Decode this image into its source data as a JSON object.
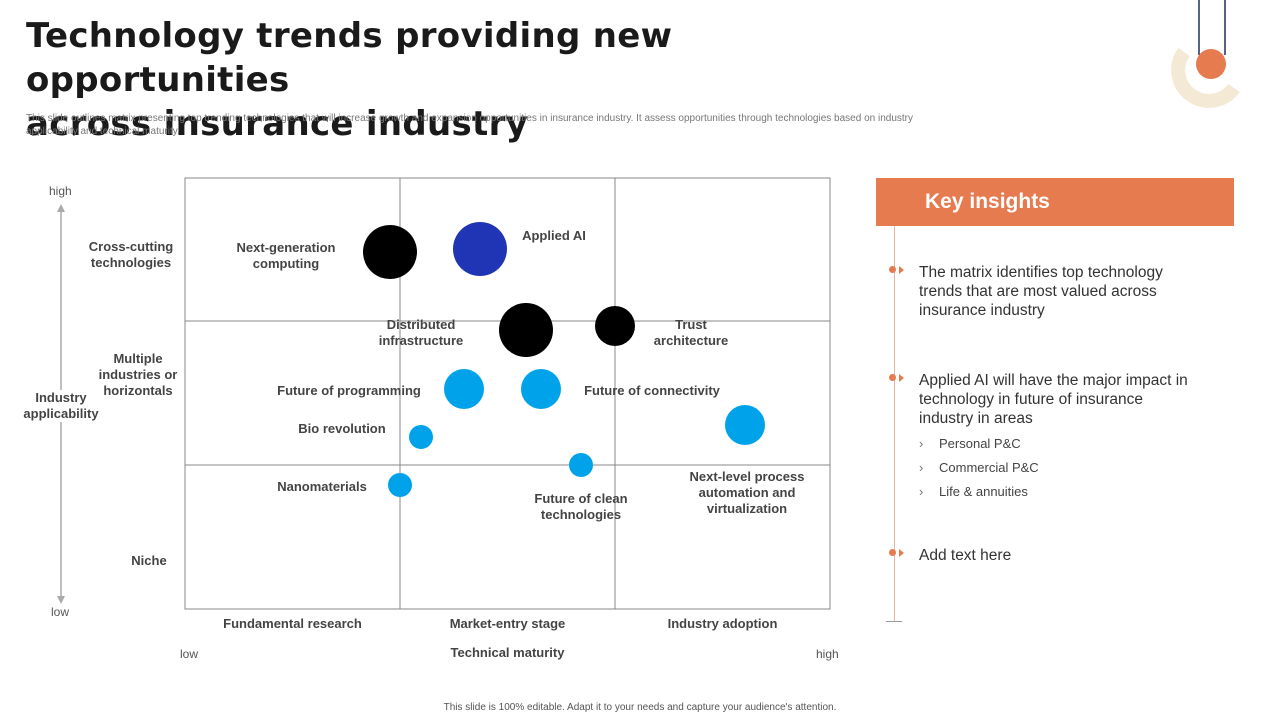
{
  "header": {
    "title_line1": "Technology trends providing new opportunities",
    "title_line2": "across insurance industry",
    "subtitle": "This slide outlines matrix presenting top trending technologies that will increase growth and expansion opportunities in insurance industry. It assess opportunities through technologies based on industry applicability and technical maturity."
  },
  "matrix": {
    "y_axis": {
      "label_line1": "Industry",
      "label_line2": "applicability",
      "high": "high",
      "low": "low"
    },
    "x_axis": {
      "label": "Technical maturity",
      "low": "low",
      "high": "high"
    },
    "rows": [
      {
        "line1": "Cross-cutting",
        "line2": "technologies",
        "line3": ""
      },
      {
        "line1": "Multiple",
        "line2": "industries or",
        "line3": "horizontals"
      },
      {
        "line1": "Niche",
        "line2": "",
        "line3": ""
      }
    ],
    "columns": [
      "Fundamental research",
      "Market-entry stage",
      "Industry  adoption"
    ],
    "labels": {
      "next_gen_1": "Next-generation",
      "next_gen_2": "computing",
      "applied_ai": "Applied AI",
      "distributed_1": "Distributed",
      "distributed_2": "infrastructure",
      "trust_1": "Trust",
      "trust_2": "architecture",
      "programming": "Future of programming",
      "connectivity": "Future of  connectivity",
      "bio": "Bio revolution",
      "nano": "Nanomaterials",
      "clean_1": "Future of clean",
      "clean_2": "technologies",
      "process_1": "Next-level process",
      "process_2": "automation and",
      "process_3": "virtualization"
    },
    "colors": {
      "black": "#000000",
      "dark_blue": "#1f35b5",
      "light_blue": "#00a2ea",
      "grid": "#888888"
    }
  },
  "insights": {
    "header": "Key insights",
    "items": [
      {
        "l1": "The matrix identifies top technology",
        "l2": "trends that are most valued across",
        "l3": "insurance industry"
      },
      {
        "l1": "Applied AI will have the major impact in",
        "l2": "technology in future  of insurance",
        "l3": "industry in areas"
      },
      {
        "l1": "Add text here",
        "l2": "",
        "l3": ""
      }
    ],
    "sub_items": [
      "Personal P&C",
      "Commercial  P&C",
      "Life & annuities"
    ],
    "accent": "#e67b4f"
  },
  "footer": "This slide is 100% editable. Adapt it to your needs and capture your audience's attention."
}
